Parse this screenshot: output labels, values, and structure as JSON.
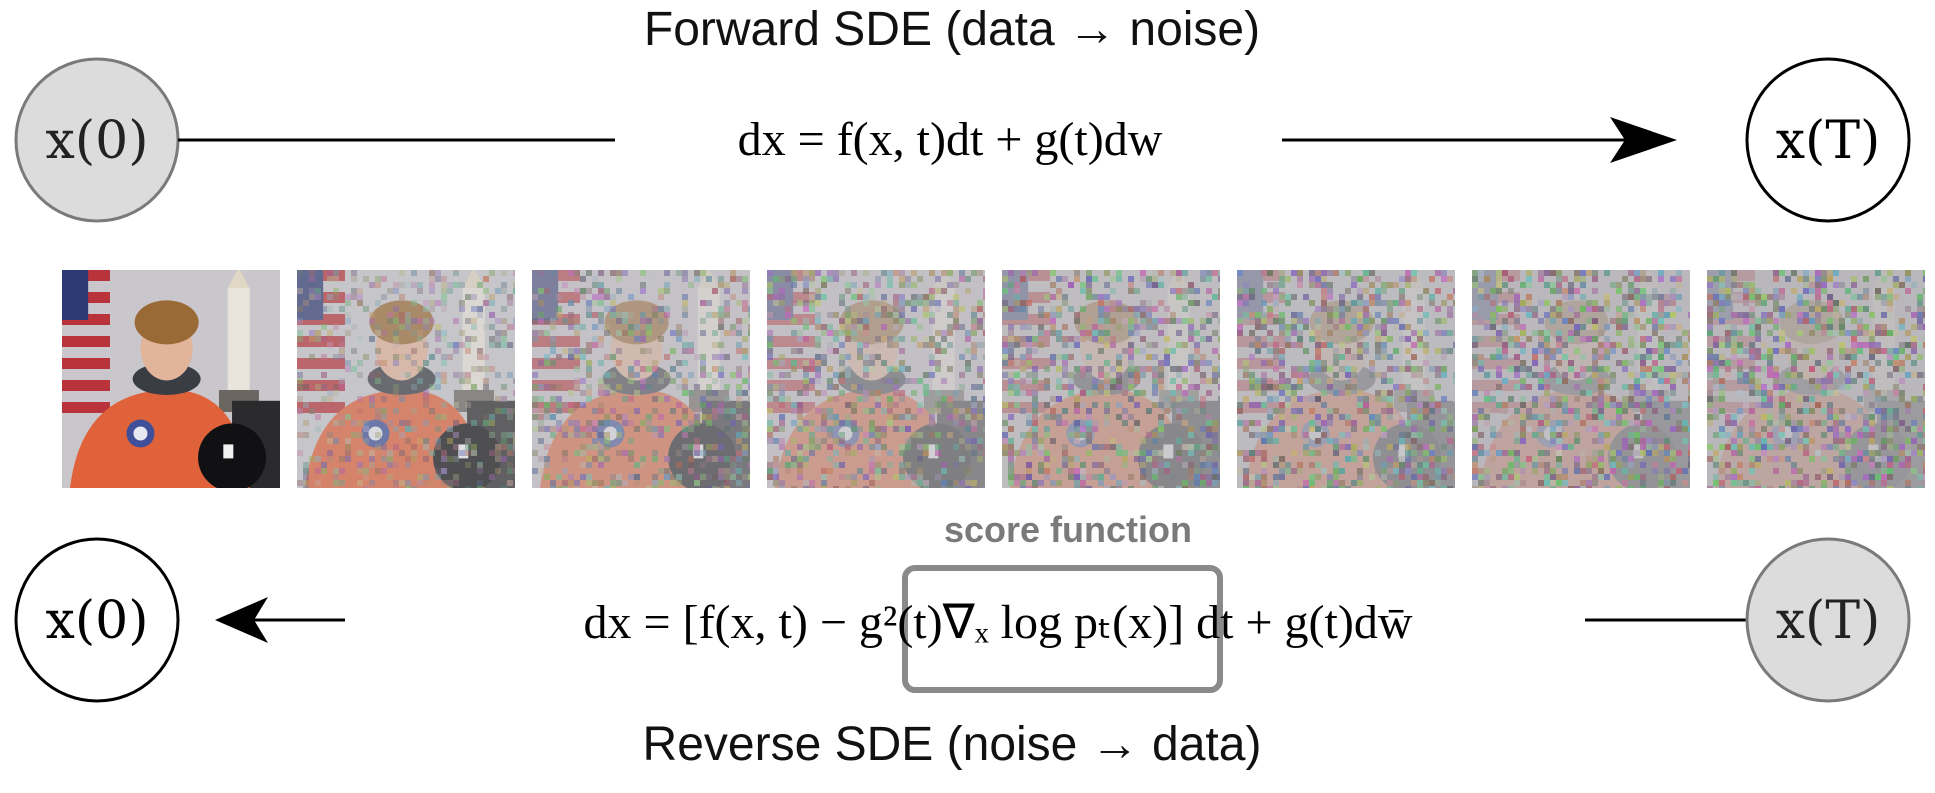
{
  "forward": {
    "title": "Forward SDE (data → noise)",
    "start_node": "x(0)",
    "end_node": "x(T)",
    "equation": "dx = f(x, t)dt + g(t)dw"
  },
  "reverse": {
    "title": "Reverse SDE (noise → data)",
    "start_node": "x(T)",
    "end_node": "x(0)",
    "equation": "dx = [f(x, t) − g²(t)∇ₓ log pₜ(x)] dt + g(t)dw̄",
    "score_label": "score function",
    "score_term": "∇ₓ log pₜ(x)"
  },
  "colors": {
    "line": "#000000",
    "shaded_node_fill": "#dcdcdc",
    "shaded_node_stroke": "#7a7a7a",
    "score_box": "#8a8a8a",
    "score_label": "#7a7a7a"
  },
  "noise_frames": [
    {
      "noise": 0.0
    },
    {
      "noise": 0.32
    },
    {
      "noise": 0.52
    },
    {
      "noise": 0.66
    },
    {
      "noise": 0.76
    },
    {
      "noise": 0.84
    },
    {
      "noise": 0.9
    },
    {
      "noise": 0.95
    }
  ]
}
